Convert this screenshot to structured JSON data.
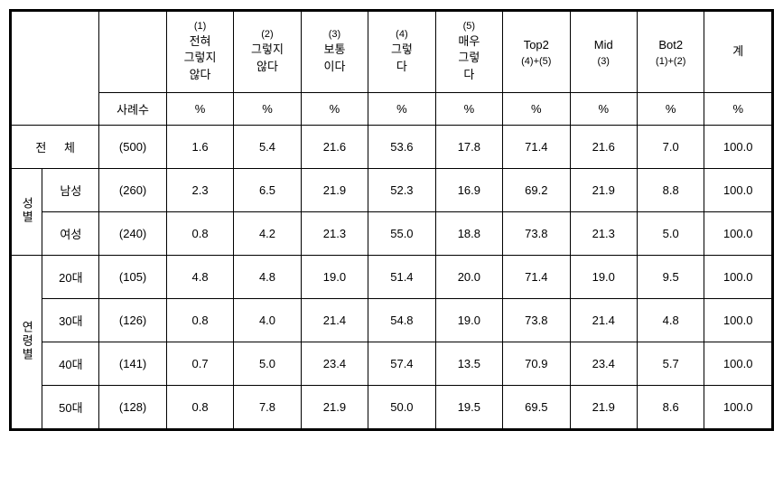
{
  "columns": {
    "sample_count_label": "사례수",
    "c1": {
      "sup": "(1)",
      "main": "전혀\n그렇지\n않다",
      "unit": "%"
    },
    "c2": {
      "sup": "(2)",
      "main": "그렇지\n않다",
      "unit": "%"
    },
    "c3": {
      "sup": "(3)",
      "main": "보통\n이다",
      "unit": "%"
    },
    "c4": {
      "sup": "(4)",
      "main": "그렇\n다",
      "unit": "%"
    },
    "c5": {
      "sup": "(5)",
      "main": "매우\n그렇\n다",
      "unit": "%"
    },
    "top2": {
      "main": "Top2",
      "sub": "(4)+(5)",
      "unit": "%"
    },
    "mid": {
      "main": "Mid",
      "sub": "(3)",
      "unit": "%"
    },
    "bot2": {
      "main": "Bot2",
      "sub": "(1)+(2)",
      "unit": "%"
    },
    "total": {
      "main": "계",
      "unit": "%"
    }
  },
  "groups": {
    "overall": {
      "label": "전 체"
    },
    "gender": {
      "label": "성별"
    },
    "age": {
      "label": "연령별"
    }
  },
  "rows": {
    "overall": {
      "label": "",
      "count": "(500)",
      "v": [
        "1.6",
        "5.4",
        "21.6",
        "53.6",
        "17.8",
        "71.4",
        "21.6",
        "7.0",
        "100.0"
      ]
    },
    "male": {
      "label": "남성",
      "count": "(260)",
      "v": [
        "2.3",
        "6.5",
        "21.9",
        "52.3",
        "16.9",
        "69.2",
        "21.9",
        "8.8",
        "100.0"
      ]
    },
    "female": {
      "label": "여성",
      "count": "(240)",
      "v": [
        "0.8",
        "4.2",
        "21.3",
        "55.0",
        "18.8",
        "73.8",
        "21.3",
        "5.0",
        "100.0"
      ]
    },
    "age20": {
      "label": "20대",
      "count": "(105)",
      "v": [
        "4.8",
        "4.8",
        "19.0",
        "51.4",
        "20.0",
        "71.4",
        "19.0",
        "9.5",
        "100.0"
      ]
    },
    "age30": {
      "label": "30대",
      "count": "(126)",
      "v": [
        "0.8",
        "4.0",
        "21.4",
        "54.8",
        "19.0",
        "73.8",
        "21.4",
        "4.8",
        "100.0"
      ]
    },
    "age40": {
      "label": "40대",
      "count": "(141)",
      "v": [
        "0.7",
        "5.0",
        "23.4",
        "57.4",
        "13.5",
        "70.9",
        "23.4",
        "5.7",
        "100.0"
      ]
    },
    "age50": {
      "label": "50대",
      "count": "(128)",
      "v": [
        "0.8",
        "7.8",
        "21.9",
        "50.0",
        "19.5",
        "69.5",
        "21.9",
        "8.6",
        "100.0"
      ]
    }
  }
}
